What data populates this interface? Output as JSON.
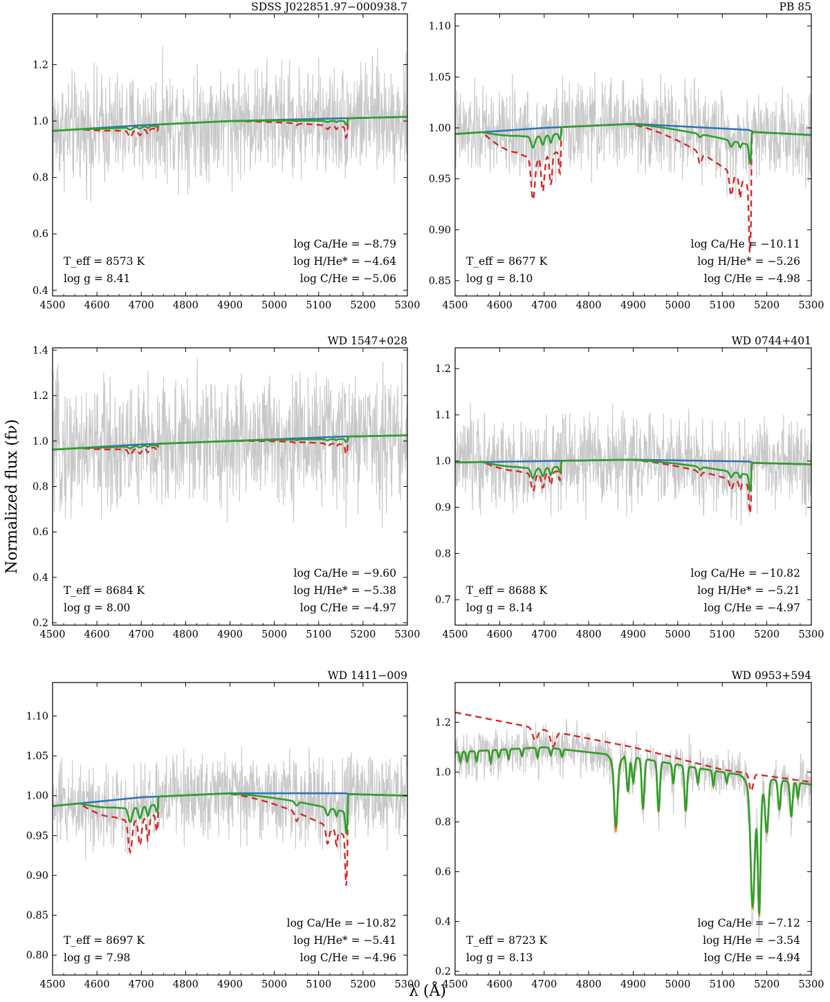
{
  "figure": {
    "ylabel": "Normalized flux (fν)",
    "xlabel": "λ (Å)",
    "colors": {
      "observed": "#c8c8c8",
      "blue_model": "#2f74b5",
      "orange_model": "#f28a1c",
      "green_model": "#2ca02c",
      "red_dashed": "#d62728"
    }
  },
  "chart_data": [
    {
      "type": "line",
      "title": "SDSS J022851.97−000938.7",
      "xlim": [
        4500,
        5300
      ],
      "ylim": [
        0.38,
        1.38
      ],
      "xticks": [
        4500,
        4600,
        4700,
        4800,
        4900,
        5000,
        5100,
        5200,
        5300
      ],
      "yticks": [
        0.4,
        0.6,
        0.8,
        1.0,
        1.2
      ],
      "ytick_labels": [
        "0.4",
        "0.6",
        "0.8",
        "1.0",
        "1.2"
      ],
      "noise_amp": 0.2,
      "cont": [
        [
          4500,
          0.965
        ],
        [
          4700,
          0.985
        ],
        [
          4900,
          1.0
        ],
        [
          5160,
          1.01
        ],
        [
          5170,
          1.01
        ],
        [
          5300,
          1.015
        ]
      ],
      "green_scale": 0.35,
      "red_scale": 0.8,
      "annotations": {
        "teff": "T_eff = 8573 K",
        "logg": "log g = 8.41",
        "ca": "log Ca/He = −8.79",
        "h": "log H/He* = −4.64",
        "c": "log C/He = −5.06"
      }
    },
    {
      "type": "line",
      "title": "PB 85",
      "xlim": [
        4500,
        5300
      ],
      "ylim": [
        0.835,
        1.112
      ],
      "xticks": [
        4500,
        4600,
        4700,
        4800,
        4900,
        5000,
        5100,
        5200,
        5300
      ],
      "yticks": [
        0.85,
        0.9,
        0.95,
        1.0,
        1.05,
        1.1
      ],
      "ytick_labels": [
        "0.85",
        "0.90",
        "0.95",
        "1.00",
        "1.05",
        "1.10"
      ],
      "noise_amp": 0.045,
      "cont": [
        [
          4500,
          0.994
        ],
        [
          4700,
          1.0
        ],
        [
          4900,
          1.004
        ],
        [
          5160,
          0.998
        ],
        [
          5170,
          0.996
        ],
        [
          5300,
          0.993
        ]
      ],
      "green_scale": 0.5,
      "red_scale": 1.4,
      "annotations": {
        "teff": "T_eff = 8677 K",
        "logg": "log g = 8.10",
        "ca": "log Ca/He = −10.11",
        "h": "log H/He* = −5.26",
        "c": "log C/He = −4.98"
      }
    },
    {
      "type": "line",
      "title": "WD 1547+028",
      "xlim": [
        4500,
        5300
      ],
      "ylim": [
        0.19,
        1.41
      ],
      "xticks": [
        4500,
        4600,
        4700,
        4800,
        4900,
        5000,
        5100,
        5200,
        5300
      ],
      "yticks": [
        0.2,
        0.4,
        0.6,
        0.8,
        1.0,
        1.2,
        1.4
      ],
      "ytick_labels": [
        "0.2",
        "0.4",
        "0.6",
        "0.8",
        "1.0",
        "1.2",
        "1.4"
      ],
      "noise_amp": 0.3,
      "cont": [
        [
          4500,
          0.962
        ],
        [
          4700,
          0.985
        ],
        [
          4900,
          1.0
        ],
        [
          5160,
          1.02
        ],
        [
          5170,
          1.02
        ],
        [
          5300,
          1.025
        ]
      ],
      "green_scale": 0.4,
      "red_scale": 0.9,
      "annotations": {
        "teff": "T_eff = 8684 K",
        "logg": "log g = 8.00",
        "ca": "log Ca/He = −9.60",
        "h": "log H/He* = −5.38",
        "c": "log C/He = −4.97"
      }
    },
    {
      "type": "line",
      "title": "WD 0744+401",
      "xlim": [
        4500,
        5300
      ],
      "ylim": [
        0.645,
        1.245
      ],
      "xticks": [
        4500,
        4600,
        4700,
        4800,
        4900,
        5000,
        5100,
        5200,
        5300
      ],
      "yticks": [
        0.7,
        0.8,
        0.9,
        1.0,
        1.1,
        1.2
      ],
      "ytick_labels": [
        "0.7",
        "0.8",
        "0.9",
        "1.0",
        "1.1",
        "1.2"
      ],
      "noise_amp": 0.1,
      "cont": [
        [
          4500,
          0.997
        ],
        [
          4700,
          1.0
        ],
        [
          4900,
          1.003
        ],
        [
          5160,
          0.999
        ],
        [
          5170,
          0.996
        ],
        [
          5300,
          0.993
        ]
      ],
      "green_scale": 1.0,
      "red_scale": 1.3,
      "annotations": {
        "teff": "T_eff = 8688 K",
        "logg": "log g = 8.14",
        "ca": "log Ca/He = −10.82",
        "h": "log H/He* = −5.21",
        "c": "log C/He = −4.97"
      }
    },
    {
      "type": "line",
      "title": "WD 1411−009",
      "xlim": [
        4500,
        5300
      ],
      "ylim": [
        0.775,
        1.142
      ],
      "xticks": [
        4500,
        4600,
        4700,
        4800,
        4900,
        5000,
        5100,
        5200,
        5300
      ],
      "yticks": [
        0.8,
        0.85,
        0.9,
        0.95,
        1.0,
        1.05,
        1.1
      ],
      "ytick_labels": [
        "0.80",
        "0.85",
        "0.90",
        "0.95",
        "1.00",
        "1.05",
        "1.10"
      ],
      "noise_amp": 0.055,
      "cont": [
        [
          4500,
          0.987
        ],
        [
          4700,
          0.998
        ],
        [
          4900,
          1.003
        ],
        [
          5160,
          1.003
        ],
        [
          5170,
          1.002
        ],
        [
          5300,
          1.0
        ]
      ],
      "green_scale": 0.8,
      "red_scale": 1.35,
      "annotations": {
        "teff": "T_eff = 8697 K",
        "logg": "log g = 7.98",
        "ca": "log Ca/He = −10.82",
        "h": "log H/He* = −5.41",
        "c": "log C/He = −4.96"
      }
    },
    {
      "type": "line",
      "title": "WD 0953+594",
      "xlim": [
        4500,
        5300
      ],
      "ylim": [
        0.185,
        1.36
      ],
      "xticks": [
        4500,
        4600,
        4700,
        4800,
        4900,
        5000,
        5100,
        5200,
        5300
      ],
      "yticks": [
        0.2,
        0.4,
        0.6,
        0.8,
        1.0,
        1.2
      ],
      "ytick_labels": [
        "0.2",
        "0.4",
        "0.6",
        "0.8",
        "1.0",
        "1.2"
      ],
      "noise_amp": 0.1,
      "red_line": [
        [
          4500,
          1.24
        ],
        [
          4700,
          1.17
        ],
        [
          4900,
          1.1
        ],
        [
          5100,
          1.01
        ],
        [
          5300,
          0.96
        ]
      ],
      "green_cont": [
        [
          4500,
          1.08
        ],
        [
          4700,
          1.1
        ],
        [
          4900,
          1.06
        ],
        [
          5100,
          1.0
        ],
        [
          5300,
          0.95
        ]
      ],
      "annotations": {
        "teff": "T_eff = 8723 K",
        "logg": "log g = 8.13",
        "ca": "log Ca/He = −7.12",
        "h": "log H/He = −3.54",
        "c": "log C/He = −4.94"
      }
    }
  ]
}
